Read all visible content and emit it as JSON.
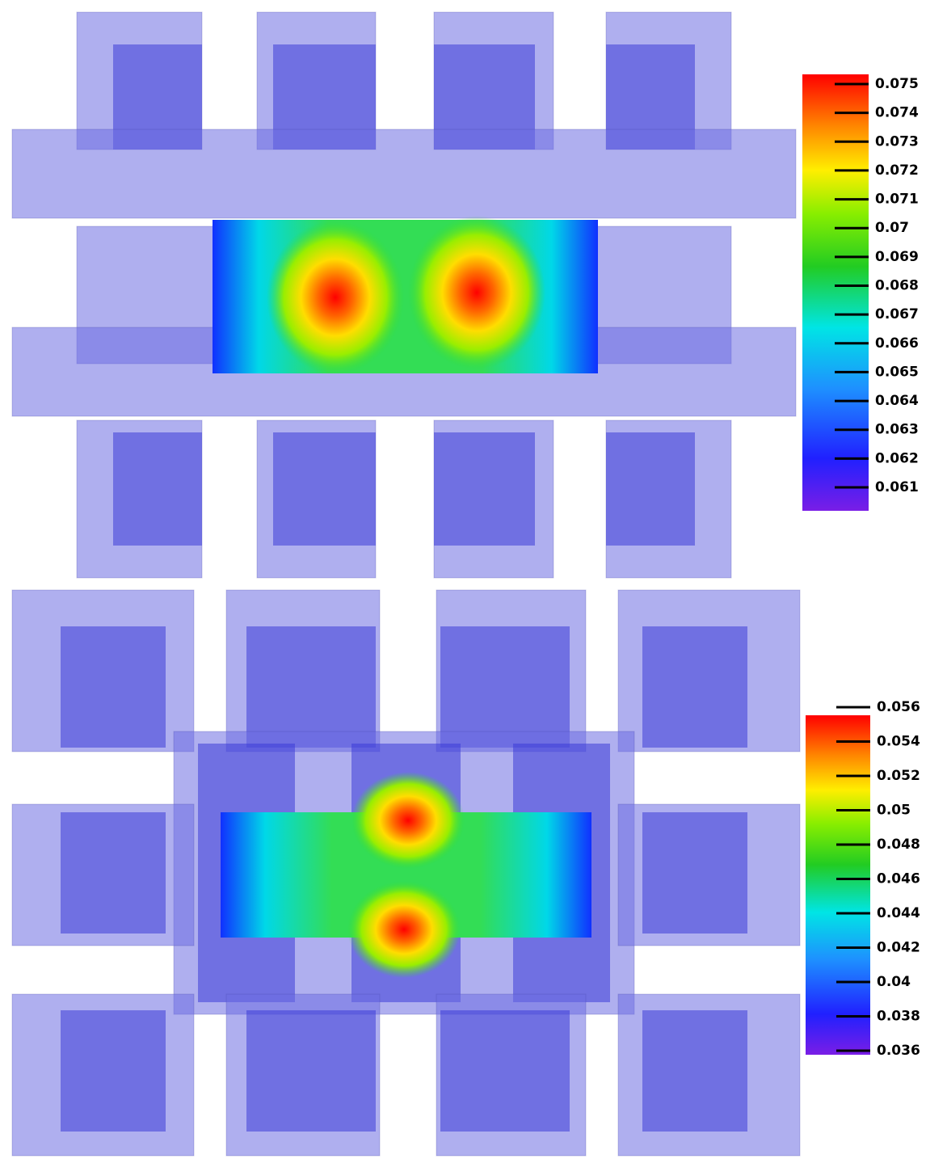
{
  "panels": [
    {
      "colorbar": {
        "ticks": [
          0.075,
          0.074,
          0.073,
          0.072,
          0.071,
          0.07,
          0.069,
          0.068,
          0.067,
          0.066,
          0.065,
          0.064,
          0.063,
          0.062,
          0.061
        ]
      }
    },
    {
      "colorbar": {
        "ticks": [
          0.056,
          0.054,
          0.052,
          0.05,
          0.048,
          0.046,
          0.044,
          0.042,
          0.04,
          0.038,
          0.036
        ]
      }
    }
  ]
}
